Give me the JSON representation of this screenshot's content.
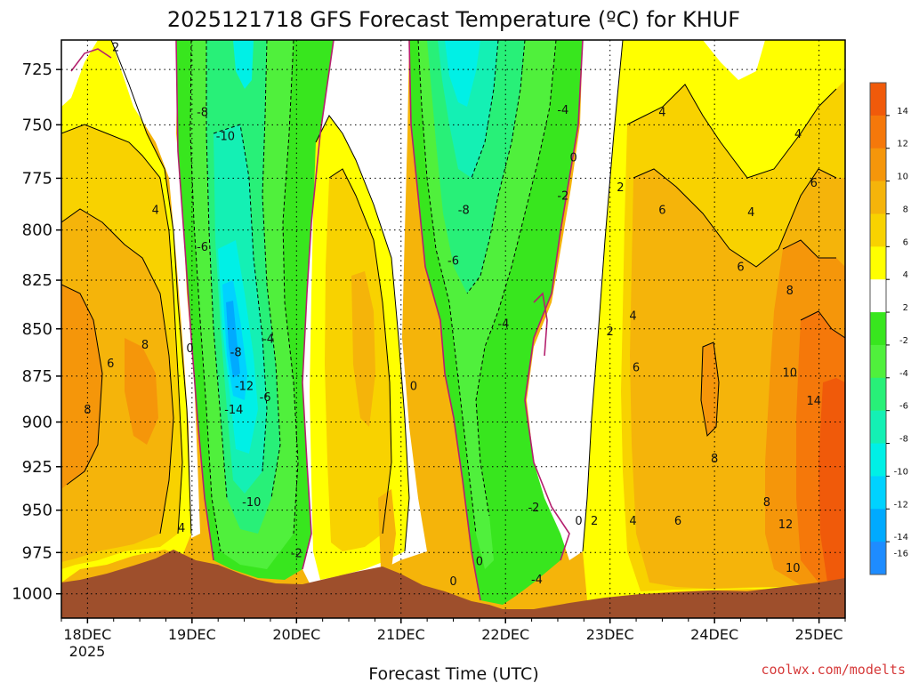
{
  "chart_data": {
    "type": "heatmap",
    "title": "2025121718 GFS Forecast Temperature (ºC) for KHUF",
    "xlabel": "Forecast Time (UTC)",
    "ylabel": "",
    "x_ticks": [
      "18DEC",
      "19DEC",
      "20DEC",
      "21DEC",
      "22DEC",
      "23DEC",
      "24DEC",
      "25DEC"
    ],
    "x_tick_sublabel": "2025",
    "y_ticks": [
      725,
      750,
      775,
      800,
      825,
      850,
      875,
      900,
      925,
      950,
      975,
      1000
    ],
    "ylim": [
      1015,
      712
    ],
    "x_range_days": [
      17.75,
      25.25
    ],
    "y_scale": "log-pressure (inverted)",
    "grid": "dotted",
    "legend": "right colorbar",
    "colorbar_labels": [
      "14",
      "12",
      "10",
      "8",
      "6",
      "4",
      "2",
      "-2",
      "-4",
      "-6",
      "-8",
      "-10",
      "-12",
      "-14",
      "-16"
    ],
    "colorbar_colors": [
      "#f05a0a",
      "#f5780a",
      "#f5960a",
      "#f5b40a",
      "#f8d200",
      "#ffff00",
      "#ffffff",
      "#38e61e",
      "#50f03c",
      "#28f078",
      "#14f0b4",
      "#00f0e6",
      "#00d2ff",
      "#00aaff",
      "#1e8cff"
    ],
    "contour_labels": [
      {
        "text": "2",
        "day": 18.27,
        "p": 715
      },
      {
        "text": "4",
        "day": 18.65,
        "p": 790
      },
      {
        "text": "6",
        "day": 18.22,
        "p": 868
      },
      {
        "text": "8",
        "day": 18.55,
        "p": 858
      },
      {
        "text": "8",
        "day": 18.0,
        "p": 893
      },
      {
        "text": "4",
        "day": 18.9,
        "p": 960
      },
      {
        "text": "0",
        "day": 18.98,
        "p": 860
      },
      {
        "text": "-8",
        "day": 19.1,
        "p": 744
      },
      {
        "text": "-10",
        "day": 19.32,
        "p": 755
      },
      {
        "text": "-6",
        "day": 19.1,
        "p": 808
      },
      {
        "text": "-8",
        "day": 19.42,
        "p": 862
      },
      {
        "text": "-4",
        "day": 19.73,
        "p": 855
      },
      {
        "text": "-12",
        "day": 19.5,
        "p": 880
      },
      {
        "text": "-6",
        "day": 19.7,
        "p": 886
      },
      {
        "text": "-14",
        "day": 19.4,
        "p": 893
      },
      {
        "text": "-10",
        "day": 19.57,
        "p": 945
      },
      {
        "text": "-2",
        "day": 20.0,
        "p": 975
      },
      {
        "text": "0",
        "day": 21.12,
        "p": 880
      },
      {
        "text": "-8",
        "day": 21.6,
        "p": 790
      },
      {
        "text": "-6",
        "day": 21.5,
        "p": 815
      },
      {
        "text": "-4",
        "day": 21.98,
        "p": 847
      },
      {
        "text": "0",
        "day": 22.65,
        "p": 765
      },
      {
        "text": "-4",
        "day": 22.55,
        "p": 743
      },
      {
        "text": "-2",
        "day": 22.55,
        "p": 783
      },
      {
        "text": "-2",
        "day": 22.27,
        "p": 948
      },
      {
        "text": "0",
        "day": 22.7,
        "p": 956
      },
      {
        "text": "2",
        "day": 22.85,
        "p": 956
      },
      {
        "text": "0",
        "day": 21.75,
        "p": 980
      },
      {
        "text": "0",
        "day": 21.5,
        "p": 992
      },
      {
        "text": "-4",
        "day": 22.3,
        "p": 991
      },
      {
        "text": "2",
        "day": 23.1,
        "p": 779
      },
      {
        "text": "2",
        "day": 23.0,
        "p": 851
      },
      {
        "text": "4",
        "day": 23.22,
        "p": 843
      },
      {
        "text": "6",
        "day": 23.25,
        "p": 870
      },
      {
        "text": "4",
        "day": 23.22,
        "p": 956
      },
      {
        "text": "6",
        "day": 23.65,
        "p": 956
      },
      {
        "text": "4",
        "day": 23.5,
        "p": 744
      },
      {
        "text": "6",
        "day": 23.5,
        "p": 790
      },
      {
        "text": "6",
        "day": 24.25,
        "p": 818
      },
      {
        "text": "4",
        "day": 24.35,
        "p": 791
      },
      {
        "text": "8",
        "day": 24.0,
        "p": 920
      },
      {
        "text": "4",
        "day": 24.8,
        "p": 754
      },
      {
        "text": "6",
        "day": 24.95,
        "p": 777
      },
      {
        "text": "8",
        "day": 24.72,
        "p": 830
      },
      {
        "text": "10",
        "day": 24.72,
        "p": 873
      },
      {
        "text": "14",
        "day": 24.95,
        "p": 888
      },
      {
        "text": "8",
        "day": 24.5,
        "p": 945
      },
      {
        "text": "12",
        "day": 24.68,
        "p": 958
      },
      {
        "text": "10",
        "day": 24.75,
        "p": 984
      }
    ]
  }
}
